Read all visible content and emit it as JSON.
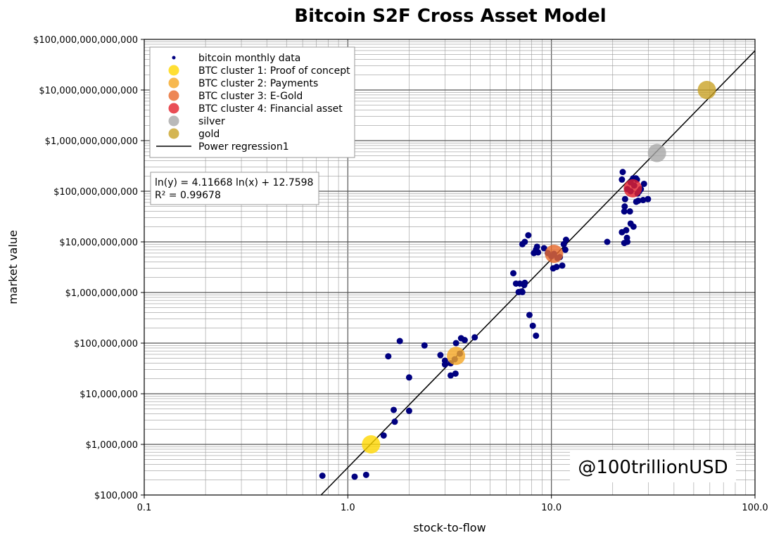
{
  "chart_data": {
    "type": "scatter",
    "title": "Bitcoin S2F Cross Asset Model",
    "xlabel": "stock-to-flow",
    "ylabel": "market value",
    "xscale": "log",
    "yscale": "log",
    "xlim": [
      0.1,
      100
    ],
    "ylim": [
      100000,
      100000000000000
    ],
    "grid": true,
    "legend_position": "top-left",
    "x_tick_labels": [
      "0.1",
      "1.0",
      "10.0",
      "100.0"
    ],
    "x_tick_values": [
      0.1,
      1,
      10,
      100
    ],
    "y_tick_labels": [
      "$100,000",
      "$1,000,000",
      "$10,000,000",
      "$100,000,000",
      "$1,000,000,000",
      "$10,000,000,000",
      "$100,000,000,000",
      "$1,000,000,000,000",
      "$10,000,000,000,000",
      "$100,000,000,000,000"
    ],
    "y_tick_values": [
      100000,
      1000000,
      10000000,
      100000000,
      1000000000,
      10000000000,
      100000000000,
      1000000000000,
      10000000000000,
      100000000000000
    ],
    "series": [
      {
        "name": "bitcoin monthly data",
        "color": "#000080",
        "points": [
          [
            0.75,
            240000
          ],
          [
            1.08,
            230000
          ],
          [
            1.23,
            250000
          ],
          [
            1.5,
            1500000
          ],
          [
            1.7,
            2800000
          ],
          [
            1.68,
            4800000
          ],
          [
            2.0,
            4600000
          ],
          [
            2.0,
            21000000
          ],
          [
            1.58,
            55000000
          ],
          [
            1.8,
            110000000
          ],
          [
            2.38,
            90000000
          ],
          [
            2.85,
            58000000
          ],
          [
            3.0,
            45000000
          ],
          [
            3.0,
            38000000
          ],
          [
            3.2,
            40000000
          ],
          [
            3.2,
            23000000
          ],
          [
            3.38,
            25000000
          ],
          [
            3.4,
            100000000
          ],
          [
            3.6,
            125000000
          ],
          [
            3.75,
            115000000
          ],
          [
            4.2,
            130000000
          ],
          [
            3.35,
            48000000
          ],
          [
            3.55,
            62000000
          ],
          [
            6.5,
            2400000000
          ],
          [
            6.7,
            1500000000
          ],
          [
            6.9,
            1020000000
          ],
          [
            7.0,
            1500000000
          ],
          [
            7.15,
            1050000000
          ],
          [
            7.2,
            1020000000
          ],
          [
            7.4,
            1550000000
          ],
          [
            7.35,
            1400000000
          ],
          [
            7.2,
            9000000000
          ],
          [
            7.4,
            10000000000
          ],
          [
            7.7,
            13500000000
          ],
          [
            7.8,
            360000000
          ],
          [
            8.1,
            220000000
          ],
          [
            8.4,
            140000000
          ],
          [
            8.2,
            6000000000
          ],
          [
            8.5,
            8000000000
          ],
          [
            8.4,
            7000000000
          ],
          [
            8.6,
            6200000000
          ],
          [
            9.2,
            7500000000
          ],
          [
            9.6,
            6000000000
          ],
          [
            10.3,
            5800000000
          ],
          [
            10.7,
            4800000000
          ],
          [
            11.0,
            5000000000
          ],
          [
            10.2,
            3000000000
          ],
          [
            10.6,
            3200000000
          ],
          [
            11.3,
            3400000000
          ],
          [
            11.5,
            9000000000
          ],
          [
            11.8,
            11000000000
          ],
          [
            11.7,
            7000000000
          ],
          [
            10.0,
            5200000000
          ],
          [
            18.8,
            10000000000
          ],
          [
            22.2,
            15500000000
          ],
          [
            22.8,
            9500000000
          ],
          [
            23.5,
            12000000000
          ],
          [
            23.6,
            10000000000
          ],
          [
            23.3,
            17000000000
          ],
          [
            24.5,
            23000000000
          ],
          [
            25.3,
            20000000000
          ],
          [
            22.8,
            40000000000
          ],
          [
            22.9,
            50000000000
          ],
          [
            24.3,
            40000000000
          ],
          [
            23.0,
            70000000000
          ],
          [
            22.2,
            170000000000
          ],
          [
            22.4,
            240000000000
          ],
          [
            23.6,
            110000000000
          ],
          [
            24.5,
            150000000000
          ],
          [
            25.2,
            180000000000
          ],
          [
            26.0,
            180000000000
          ],
          [
            26.3,
            170000000000
          ],
          [
            25.5,
            130000000000
          ],
          [
            24.5,
            100000000000
          ],
          [
            26.1,
            62000000000
          ],
          [
            26.7,
            65000000000
          ],
          [
            27.5,
            110000000000
          ],
          [
            28.5,
            140000000000
          ],
          [
            28.2,
            67000000000
          ],
          [
            29.8,
            70000000000
          ],
          [
            26.5,
            90000000000
          ],
          [
            27.0,
            100000000000
          ]
        ]
      },
      {
        "name": "BTC cluster 1: Proof of concept",
        "color": "#ffd700",
        "points": [
          [
            1.3,
            1000000
          ]
        ]
      },
      {
        "name": "BTC cluster 2: Payments",
        "color": "#f5a623",
        "points": [
          [
            3.4,
            56000000
          ]
        ]
      },
      {
        "name": "BTC cluster 3: E-Gold",
        "color": "#e8692a",
        "points": [
          [
            10.3,
            5800000000
          ]
        ]
      },
      {
        "name": "BTC cluster 4: Financial asset",
        "color": "#e3202a",
        "points": [
          [
            25.1,
            114000000000
          ]
        ]
      },
      {
        "name": "silver",
        "color": "#a8a8a8",
        "points": [
          [
            33.0,
            570000000000
          ]
        ]
      },
      {
        "name": "gold",
        "color": "#c9a227",
        "points": [
          [
            58.0,
            10000000000000
          ]
        ]
      }
    ],
    "regression": {
      "name": "Power regression1",
      "color": "#000000",
      "slope": 4.11668,
      "intercept": 12.7598,
      "equation": "ln(y) = 4.11668 ln(x) + 12.7598",
      "r_squared": "R² = 0.99678"
    },
    "watermark": "@100trillionUSD"
  }
}
